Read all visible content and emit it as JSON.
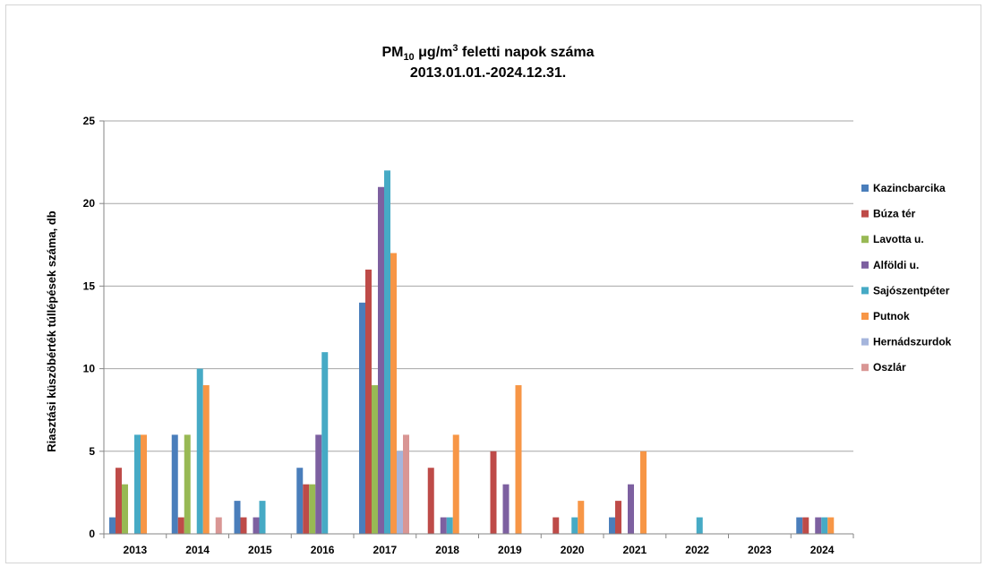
{
  "chart_data": {
    "type": "bar",
    "title_main": "PM",
    "title_sub": "10",
    "title_unit": " μg/m",
    "title_sup": "3",
    "title_rest": " feletti napok száma",
    "subtitle": "2013.01.01.-2024.12.31.",
    "xlabel": "",
    "ylabel": "Riasztási küszöbérték túllépések száma, db",
    "ylim": [
      0,
      25
    ],
    "yticks": [
      "0",
      "5",
      "10",
      "15",
      "20",
      "25"
    ],
    "grid": true,
    "legend_position": "right",
    "categories": [
      "2013",
      "2014",
      "2015",
      "2016",
      "2017",
      "2018",
      "2019",
      "2020",
      "2021",
      "2022",
      "2023",
      "2024"
    ],
    "series": [
      {
        "name": "Kazincbarcika",
        "color": "#4a7ebb",
        "values": [
          1,
          6,
          2,
          4,
          14,
          0,
          0,
          0,
          1,
          0,
          0,
          1
        ]
      },
      {
        "name": "Búza tér",
        "color": "#be4b48",
        "values": [
          4,
          1,
          1,
          3,
          16,
          4,
          5,
          1,
          2,
          0,
          0,
          1
        ]
      },
      {
        "name": "Lavotta u.",
        "color": "#98b954",
        "values": [
          3,
          6,
          0,
          3,
          9,
          0,
          0,
          0,
          0,
          0,
          0,
          0
        ]
      },
      {
        "name": "Alföldi u.",
        "color": "#7d60a0",
        "values": [
          0,
          0,
          1,
          6,
          21,
          1,
          3,
          0,
          3,
          0,
          0,
          1
        ]
      },
      {
        "name": "Sajószentpéter",
        "color": "#46aac5",
        "values": [
          6,
          10,
          2,
          11,
          22,
          1,
          0,
          1,
          0,
          1,
          0,
          1
        ]
      },
      {
        "name": "Putnok",
        "color": "#f79646",
        "values": [
          6,
          9,
          0,
          0,
          17,
          6,
          9,
          2,
          5,
          0,
          0,
          1
        ]
      },
      {
        "name": "Hernádszurdok",
        "color": "#a5b5dc",
        "values": [
          0,
          0,
          0,
          0,
          5,
          0,
          0,
          0,
          0,
          0,
          0,
          0
        ]
      },
      {
        "name": "Oszlár",
        "color": "#d99694",
        "values": [
          0,
          1,
          0,
          0,
          6,
          0,
          0,
          0,
          0,
          0,
          0,
          0
        ]
      }
    ]
  }
}
